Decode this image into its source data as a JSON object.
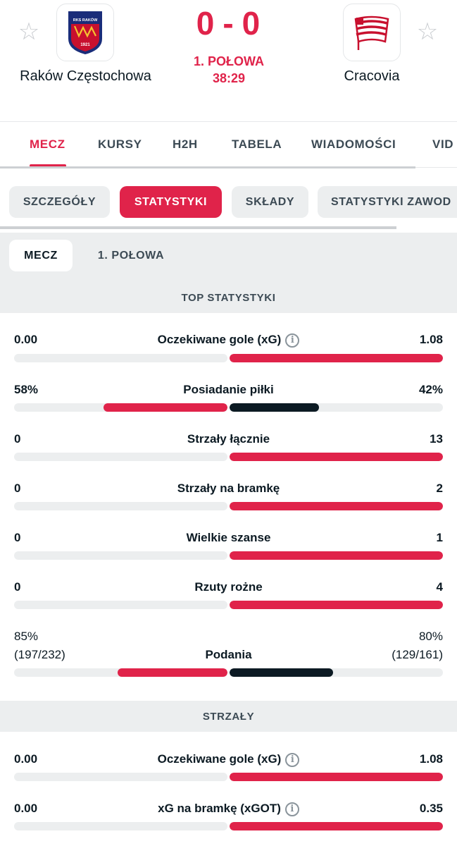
{
  "match": {
    "home": {
      "name": "Raków Częstochowa",
      "logo_text": "RKS RAKÓW CZĘSTOCHOWA 1921",
      "logo_year": "1921",
      "logo_name": "RKS RAKÓW"
    },
    "away": {
      "name": "Cracovia",
      "logo_text": "KS CRACOVIA"
    },
    "score_home": "0",
    "score_sep": "-",
    "score_away": "0",
    "period": "1. POŁOWA",
    "clock": "38:29"
  },
  "main_tabs": [
    "MECZ",
    "KURSY",
    "H2H",
    "TABELA",
    "WIADOMOŚCI",
    "VID"
  ],
  "sub_tabs": [
    "SZCZEGÓŁY",
    "STATYSTYKI",
    "SKŁADY",
    "STATYSTYKI ZAWOD"
  ],
  "period_tabs": [
    "MECZ",
    "1. POŁOWA"
  ],
  "sections": {
    "top": "TOP STATYSTYKI",
    "shots": "STRZAŁY"
  },
  "stats_top": [
    {
      "label": "Oczekiwane gole (xG)",
      "home": "0.00",
      "away": "1.08",
      "home_pct": 0,
      "away_pct": 100,
      "info": true
    },
    {
      "label": "Posiadanie piłki",
      "home": "58%",
      "away": "42%",
      "home_pct": 58,
      "away_pct": 42,
      "dark_right": true
    },
    {
      "label": "Strzały łącznie",
      "home": "0",
      "away": "13",
      "home_pct": 0,
      "away_pct": 100
    },
    {
      "label": "Strzały na bramkę",
      "home": "0",
      "away": "2",
      "home_pct": 0,
      "away_pct": 100
    },
    {
      "label": "Wielkie szanse",
      "home": "0",
      "away": "1",
      "home_pct": 0,
      "away_pct": 100
    },
    {
      "label": "Rzuty rożne",
      "home": "0",
      "away": "4",
      "home_pct": 0,
      "away_pct": 100
    }
  ],
  "passes": {
    "label": "Podania",
    "home": "85%",
    "home_detail": "(197/232)",
    "away": "80%",
    "away_detail": "(129/161)",
    "home_pct": 51.5,
    "away_pct": 48.5
  },
  "stats_shots": [
    {
      "label": "Oczekiwane gole (xG)",
      "home": "0.00",
      "away": "1.08",
      "home_pct": 0,
      "away_pct": 100,
      "info": true
    },
    {
      "label": "xG na bramkę (xGOT)",
      "home": "0.00",
      "away": "0.35",
      "home_pct": 0,
      "away_pct": 100,
      "info": true
    }
  ],
  "info_glyph": "i",
  "colors": {
    "accent": "#e0234a",
    "dark": "#0c1a23",
    "track": "#eceeef"
  }
}
